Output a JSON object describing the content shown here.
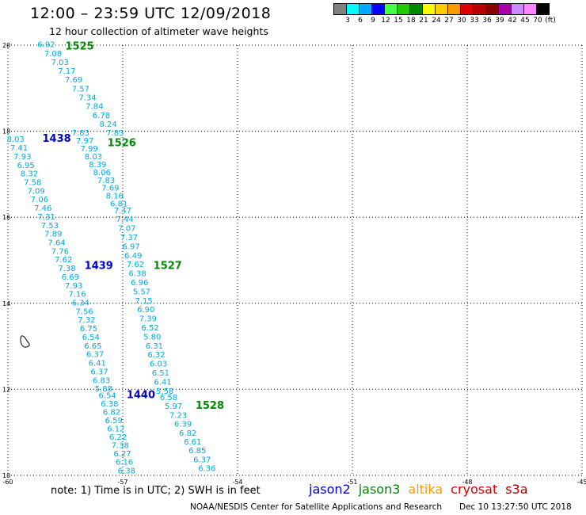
{
  "header": {
    "title": "12:00 – 23:59 UTC 12/09/2018",
    "subtitle": "12 hour collection of altimeter wave heights"
  },
  "legend": {
    "colors": [
      "#808080",
      "#00ffff",
      "#00aaff",
      "#0000ff",
      "#44ff44",
      "#22cc00",
      "#008800",
      "#ffff00",
      "#ffcc00",
      "#ff9900",
      "#dd0000",
      "#bb0000",
      "#880000",
      "#aa00aa",
      "#cc88ff",
      "#ff88ff",
      "#000000"
    ],
    "tick_labels": [
      "3",
      "6",
      "9",
      "12",
      "15",
      "18",
      "21",
      "24",
      "27",
      "30",
      "33",
      "36",
      "39",
      "42",
      "45",
      "70",
      "(ft)"
    ]
  },
  "footer": {
    "note": "note: 1) Time is in UTC; 2) SWH is in feet",
    "satellites": [
      {
        "name": "jason2",
        "color": "#0000cc"
      },
      {
        "name": "jason3",
        "color": "#008800"
      },
      {
        "name": "altika",
        "color": "#ff9900"
      },
      {
        "name": "cryosat",
        "color": "#dd0000"
      },
      {
        "name": "s3a",
        "color": "#aa0000"
      }
    ],
    "credit": "NOAA/NESDIS Center for Satellite Applications and Research",
    "timestamp": "Dec 10 13:27:50 UTC 2018"
  },
  "chart_data": {
    "type": "scatter",
    "xlim": [
      -60,
      -45
    ],
    "ylim": [
      10,
      20
    ],
    "x_ticks": [
      -60,
      -57,
      -54,
      -51,
      -48,
      -45
    ],
    "y_ticks": [
      10,
      12,
      14,
      16,
      18,
      20
    ],
    "x_tick_labels": [
      "-60",
      "-57",
      "-54",
      "-51",
      "-48",
      "-45"
    ],
    "y_tick_labels": [
      "10",
      "12",
      "14",
      "16",
      "18",
      "20"
    ],
    "grid": true,
    "value_color": "#00aadd",
    "passes": [
      {
        "id": "1525",
        "satellite": "jason3",
        "color": "#008800",
        "label_pos": [
          -58.5,
          19.9
        ],
        "start": [
          -59.0,
          19.95
        ],
        "end": [
          -57.2,
          17.9
        ],
        "values": [
          "6.92",
          "7.08",
          "7.03",
          "7.17",
          "7.69",
          "7.57",
          "7.34",
          "7.84",
          "6.78",
          "8.24",
          "7.83"
        ]
      },
      {
        "id": "1526",
        "satellite": "jason3",
        "color": "#008800",
        "label_pos": [
          -57.4,
          17.65
        ],
        "start": [
          -58.1,
          17.9
        ],
        "end": [
          -57.1,
          16.25
        ],
        "values": [
          "7.83",
          "7.97",
          "7.99",
          "8.03",
          "8.39",
          "8.06",
          "7.83",
          "7.69",
          "8.16",
          "6.81"
        ]
      },
      {
        "id": "1527",
        "satellite": "jason3",
        "color": "#008800",
        "label_pos": [
          -56.2,
          14.8
        ],
        "start": [
          -57.0,
          16.1
        ],
        "end": [
          -55.9,
          11.9
        ],
        "values": [
          "7.47",
          "7.44",
          "7.07",
          "7.37",
          "6.97",
          "6.49",
          "7.62",
          "6.38",
          "6.96",
          "5.57",
          "7.15",
          "6.90",
          "7.39",
          "6.52",
          "5.80",
          "6.31",
          "6.32",
          "6.03",
          "6.51",
          "6.41",
          "5.58"
        ]
      },
      {
        "id": "1528",
        "satellite": "jason3",
        "color": "#008800",
        "label_pos": [
          -55.1,
          11.55
        ],
        "start": [
          -55.8,
          11.75
        ],
        "end": [
          -54.8,
          10.1
        ],
        "values": [
          "6.58",
          "5.97",
          "7.23",
          "6.39",
          "6.82",
          "6.61",
          "6.85",
          "6.37",
          "6.36"
        ]
      },
      {
        "id": "1438",
        "satellite": "jason2",
        "color": "#0000cc",
        "label_pos": [
          -59.1,
          17.75
        ],
        "start": [
          -59.8,
          17.75
        ],
        "end": [
          -58.1,
          13.95
        ],
        "values": [
          "8.03",
          "7.41",
          "7.93",
          "6.95",
          "8.32",
          "7.58",
          "7.09",
          "7.06",
          "7.46",
          "7.31",
          "7.53",
          "7.89",
          "7.64",
          "7.76",
          "7.62",
          "7.38",
          "6.69",
          "7.93",
          "7.16",
          "6.34"
        ]
      },
      {
        "id": "1439",
        "satellite": "jason2",
        "color": "#0000cc",
        "label_pos": [
          -58.0,
          14.8
        ],
        "start": [
          -58.0,
          13.75
        ],
        "end": [
          -57.5,
          11.95
        ],
        "values": [
          "7.56",
          "7.32",
          "6.75",
          "6.54",
          "6.65",
          "6.37",
          "6.41",
          "6.37",
          "6.83",
          "5.88"
        ]
      },
      {
        "id": "1440",
        "satellite": "jason2",
        "color": "#0000cc",
        "label_pos": [
          -56.9,
          11.8
        ],
        "start": [
          -57.4,
          11.8
        ],
        "end": [
          -56.9,
          10.05
        ],
        "values": [
          "6.54",
          "6.38",
          "6.82",
          "6.59",
          "6.12",
          "6.22",
          "7.38",
          "6.27",
          "6.16",
          "6.38"
        ]
      }
    ]
  }
}
